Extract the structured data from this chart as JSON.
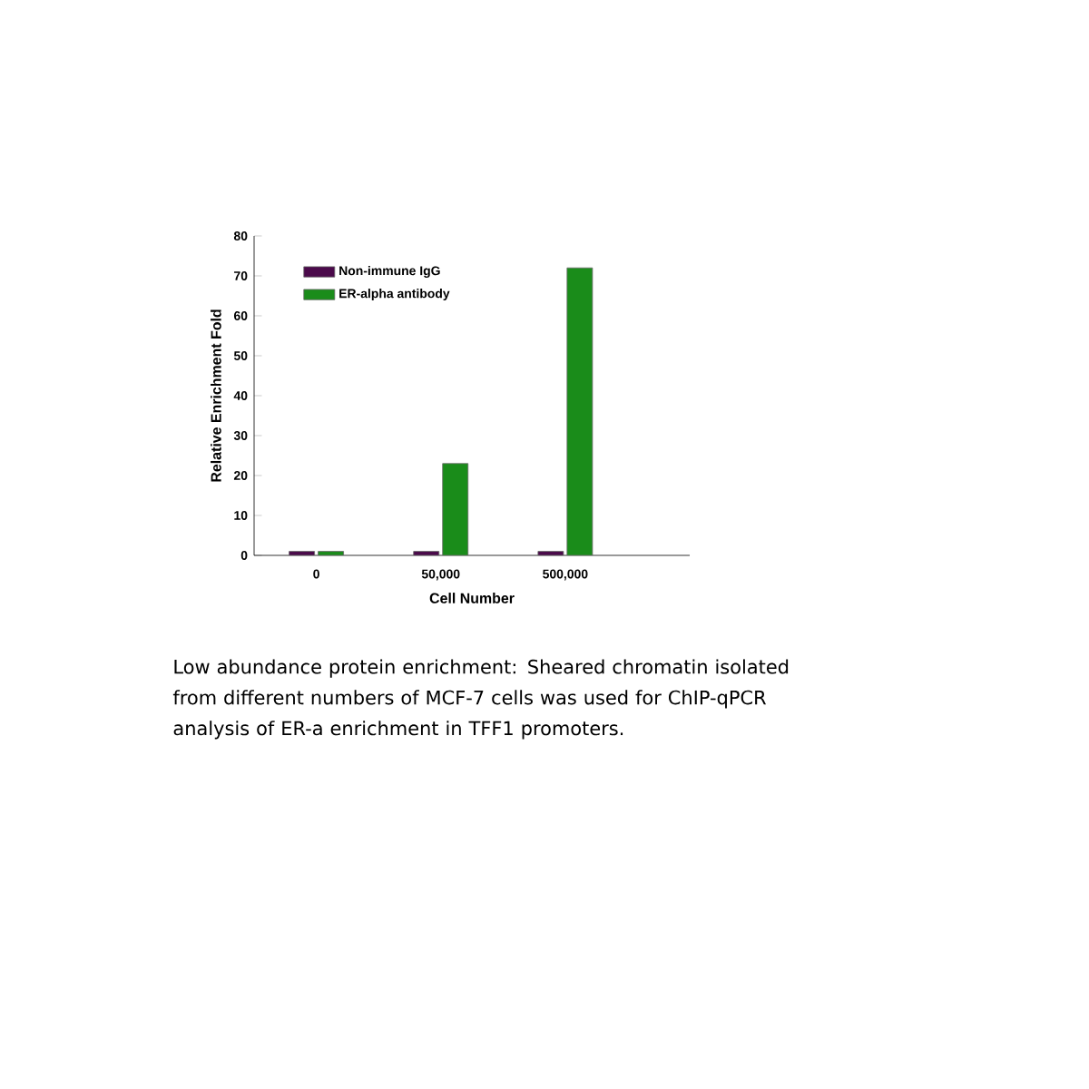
{
  "chart_data": {
    "type": "bar",
    "xlabel": "Cell Number",
    "ylabel": "Relative Enrichment Fold",
    "categories": [
      "0",
      "50,000",
      "500,000"
    ],
    "series": [
      {
        "name": "Non-immune IgG",
        "color": "#4b0a4b",
        "values": [
          1,
          1,
          1
        ]
      },
      {
        "name": "ER-alpha antibody",
        "color": "#1a8c1a",
        "values": [
          1,
          23,
          72
        ]
      }
    ],
    "ylim": [
      0,
      80
    ],
    "yticks": [
      0,
      10,
      20,
      30,
      40,
      50,
      60,
      70,
      80
    ],
    "legend": "top left",
    "grid": false,
    "annotations": [
      "Low abundance protein enrichment: Sheared chromatin isolated from different numbers of MCF-7 cells was used for ChIP-qPCR analysis of ER-a enrichment in TFF1 promoters."
    ]
  }
}
